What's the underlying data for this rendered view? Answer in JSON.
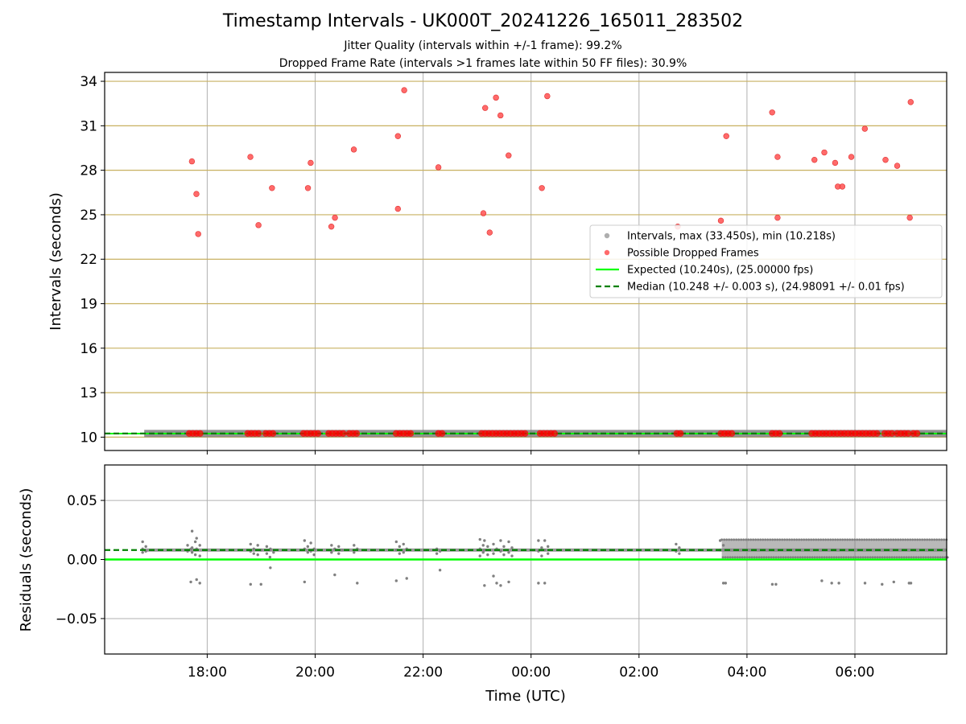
{
  "title": "Timestamp Intervals - UK000T_20241226_165011_283502",
  "subtitle_1": "Jitter Quality (intervals within +/-1 frame): 99.2%",
  "subtitle_2": "Dropped Frame Rate (intervals >1 frames late within 50 FF files): 30.9%",
  "colors": {
    "intervals": "#808080",
    "dropped": "#ff0000",
    "expected": "#00ff00",
    "median": "#008000",
    "hgrid_top": "#c8b060",
    "grid": "#b0b0b0"
  },
  "chart_data": [
    {
      "type": "scatter",
      "panel": "top",
      "ylabel": "Intervals (seconds)",
      "xlabel": "",
      "x_unit": "hours since 16:00 UTC on the time axis",
      "xlim_time": [
        "16:06",
        "07:42"
      ],
      "ylim": [
        9.1,
        34.6
      ],
      "yticks": [
        "10",
        "13",
        "16",
        "19",
        "22",
        "25",
        "28",
        "31",
        "34"
      ],
      "grid": "on",
      "legend_placement": "right",
      "legend": [
        {
          "label": "Intervals, max (33.450s), min (10.218s)",
          "kind": "point",
          "color": "#a0a0a0"
        },
        {
          "label": "Possible Dropped Frames",
          "kind": "point",
          "color": "#ff5050"
        },
        {
          "label": "Expected (10.240s), (25.00000 fps)",
          "kind": "line",
          "color": "#00ff00"
        },
        {
          "label": "Median (10.248 +/- 0.003 s), (24.98091 +/- 0.01 fps)",
          "kind": "dashed",
          "color": "#008000"
        }
      ],
      "expected": 10.24,
      "median": 10.248,
      "dropped_frames": [
        {
          "t": "17:43",
          "y": 28.6
        },
        {
          "t": "17:48",
          "y": 26.4
        },
        {
          "t": "17:50",
          "y": 23.7
        },
        {
          "t": "18:48",
          "y": 28.9
        },
        {
          "t": "18:57",
          "y": 24.3
        },
        {
          "t": "19:12",
          "y": 26.8
        },
        {
          "t": "19:52",
          "y": 26.8
        },
        {
          "t": "19:55",
          "y": 28.5
        },
        {
          "t": "20:18",
          "y": 24.2
        },
        {
          "t": "20:22",
          "y": 24.8
        },
        {
          "t": "20:43",
          "y": 29.4
        },
        {
          "t": "21:32",
          "y": 30.3
        },
        {
          "t": "21:32",
          "y": 25.4
        },
        {
          "t": "21:39",
          "y": 33.4
        },
        {
          "t": "22:17",
          "y": 28.2
        },
        {
          "t": "23:07",
          "y": 25.1
        },
        {
          "t": "23:09",
          "y": 32.2
        },
        {
          "t": "23:14",
          "y": 23.8
        },
        {
          "t": "23:21",
          "y": 32.9
        },
        {
          "t": "23:26",
          "y": 31.7
        },
        {
          "t": "23:35",
          "y": 29.0
        },
        {
          "t": "00:12",
          "y": 26.8
        },
        {
          "t": "00:18",
          "y": 33.0
        },
        {
          "t": "02:43",
          "y": 24.2
        },
        {
          "t": "03:31",
          "y": 24.6
        },
        {
          "t": "03:37",
          "y": 30.3
        },
        {
          "t": "04:28",
          "y": 31.9
        },
        {
          "t": "04:34",
          "y": 28.9
        },
        {
          "t": "04:34",
          "y": 24.8
        },
        {
          "t": "05:15",
          "y": 28.7
        },
        {
          "t": "05:26",
          "y": 29.2
        },
        {
          "t": "05:38",
          "y": 28.5
        },
        {
          "t": "05:41",
          "y": 26.9
        },
        {
          "t": "05:46",
          "y": 26.9
        },
        {
          "t": "05:56",
          "y": 28.9
        },
        {
          "t": "06:11",
          "y": 30.8
        },
        {
          "t": "06:34",
          "y": 28.7
        },
        {
          "t": "06:47",
          "y": 28.3
        },
        {
          "t": "07:01",
          "y": 24.8
        },
        {
          "t": "07:02",
          "y": 32.6
        }
      ],
      "dropped_at_baseline_ranges": [
        [
          "17:40",
          "17:55"
        ],
        [
          "18:45",
          "19:00"
        ],
        [
          "19:05",
          "19:16"
        ],
        [
          "19:47",
          "20:05"
        ],
        [
          "20:15",
          "20:32"
        ],
        [
          "20:38",
          "20:50"
        ],
        [
          "21:30",
          "21:47"
        ],
        [
          "22:17",
          "22:24"
        ],
        [
          "23:05",
          "23:55"
        ],
        [
          "00:10",
          "00:27"
        ],
        [
          "02:42",
          "02:49"
        ],
        [
          "03:31",
          "03:46"
        ],
        [
          "04:28",
          "04:40"
        ],
        [
          "05:12",
          "06:25"
        ],
        [
          "06:33",
          "06:43"
        ],
        [
          "06:47",
          "07:00"
        ],
        [
          "07:05",
          "07:12"
        ]
      ],
      "interval_baseline_range": [
        "16:50",
        "07:42"
      ]
    },
    {
      "type": "scatter",
      "panel": "bottom",
      "ylabel": "Residuals (seconds)",
      "xlabel": "Time (UTC)",
      "xlim_time": [
        "16:06",
        "07:42"
      ],
      "ylim": [
        -0.08,
        0.08
      ],
      "yticks": [
        "0.05",
        "0.00",
        "−0.05"
      ],
      "xticks": [
        "18:00",
        "20:00",
        "22:00",
        "00:00",
        "02:00",
        "04:00",
        "06:00"
      ],
      "grid": "on",
      "expected_residual": 0.0,
      "median_residual": 0.008,
      "residual_clusters": [
        {
          "t": "16:50",
          "ys": [
            0.015,
            0.011,
            0.009,
            0.007,
            0.006
          ]
        },
        {
          "t": "17:40",
          "ys": [
            0.012,
            0.009,
            0.007,
            -0.019
          ]
        },
        {
          "t": "17:45",
          "ys": [
            0.024,
            0.015,
            0.01,
            0.008,
            0.006,
            0.004
          ]
        },
        {
          "t": "17:50",
          "ys": [
            0.018,
            0.012,
            0.009,
            0.003,
            -0.017,
            -0.02
          ]
        },
        {
          "t": "18:50",
          "ys": [
            0.013,
            0.009,
            0.007,
            0.005,
            -0.021
          ]
        },
        {
          "t": "18:58",
          "ys": [
            0.012,
            0.008,
            0.004,
            -0.021
          ]
        },
        {
          "t": "19:08",
          "ys": [
            0.011,
            0.008,
            0.005,
            0.002
          ]
        },
        {
          "t": "19:12",
          "ys": [
            0.009,
            0.006,
            -0.007
          ]
        },
        {
          "t": "19:50",
          "ys": [
            0.016,
            0.011,
            0.009,
            0.006,
            -0.019
          ]
        },
        {
          "t": "19:57",
          "ys": [
            0.014,
            0.009,
            0.007,
            0.004
          ]
        },
        {
          "t": "20:20",
          "ys": [
            0.012,
            0.009,
            0.006,
            -0.013
          ]
        },
        {
          "t": "20:28",
          "ys": [
            0.011,
            0.008,
            0.005
          ]
        },
        {
          "t": "20:45",
          "ys": [
            0.012,
            0.009,
            0.006,
            -0.02
          ]
        },
        {
          "t": "21:32",
          "ys": [
            0.015,
            0.011,
            0.008,
            0.005,
            -0.018
          ]
        },
        {
          "t": "21:40",
          "ys": [
            0.013,
            0.009,
            0.006,
            -0.016
          ]
        },
        {
          "t": "22:17",
          "ys": [
            0.009,
            0.007,
            0.005,
            -0.009
          ]
        },
        {
          "t": "23:05",
          "ys": [
            0.017,
            0.012,
            0.009,
            0.006,
            0.003
          ]
        },
        {
          "t": "23:10",
          "ys": [
            0.016,
            0.011,
            0.008,
            0.004,
            -0.022
          ]
        },
        {
          "t": "23:20",
          "ys": [
            0.013,
            0.009,
            0.005,
            -0.02,
            -0.014
          ]
        },
        {
          "t": "23:28",
          "ys": [
            0.016,
            0.011,
            0.007,
            0.004,
            -0.022
          ]
        },
        {
          "t": "23:37",
          "ys": [
            0.015,
            0.01,
            0.006,
            0.003,
            -0.019
          ]
        },
        {
          "t": "00:10",
          "ys": [
            0.016,
            0.01,
            0.007,
            0.003,
            -0.02
          ]
        },
        {
          "t": "00:17",
          "ys": [
            0.016,
            0.011,
            0.008,
            0.005,
            -0.02
          ]
        },
        {
          "t": "02:43",
          "ys": [
            0.013,
            0.01,
            0.007,
            0.005
          ]
        },
        {
          "t": "03:32",
          "ys": [
            0.016,
            0.012,
            0.008,
            -0.02
          ]
        },
        {
          "t": "03:38",
          "ys": [
            -0.02
          ]
        },
        {
          "t": "04:30",
          "ys": [
            -0.021
          ]
        },
        {
          "t": "04:34",
          "ys": [
            -0.021
          ]
        },
        {
          "t": "05:25",
          "ys": [
            -0.018
          ]
        },
        {
          "t": "05:36",
          "ys": [
            -0.02
          ]
        },
        {
          "t": "05:44",
          "ys": [
            -0.02
          ]
        },
        {
          "t": "06:13",
          "ys": [
            -0.02
          ]
        },
        {
          "t": "06:32",
          "ys": [
            -0.021
          ]
        },
        {
          "t": "06:45",
          "ys": [
            -0.019
          ]
        },
        {
          "t": "07:02",
          "ys": [
            -0.02
          ]
        },
        {
          "t": "07:04",
          "ys": [
            -0.02
          ]
        }
      ],
      "dense_band": {
        "from": "03:32",
        "to": "07:42",
        "ymin": 0.001,
        "ymax": 0.017
      }
    }
  ]
}
